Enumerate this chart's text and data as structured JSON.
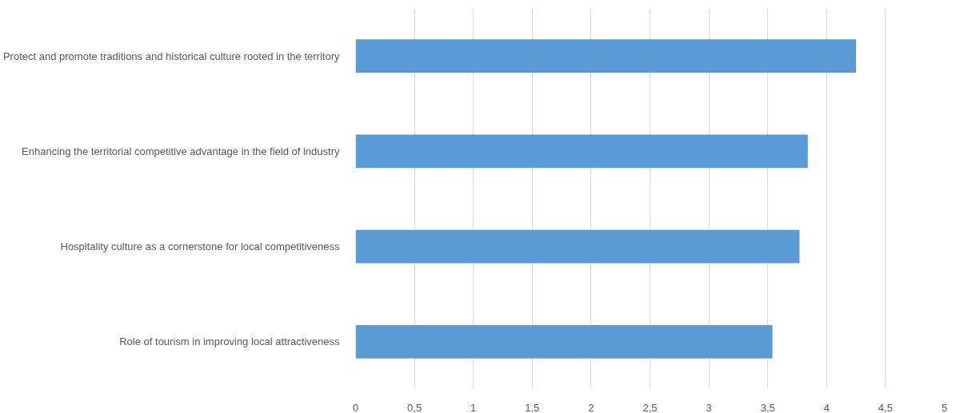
{
  "chart_data": {
    "type": "bar",
    "orientation": "horizontal",
    "categories": [
      "Protect and promote traditions and historical culture rooted in the territory",
      "Enhancing the territorial competitive advantage in the field of industry",
      "Hospitality culture as a cornerstone for local competitiveness",
      "Role of tourism in improving local attractiveness"
    ],
    "values": [
      4.25,
      3.84,
      3.77,
      3.54
    ],
    "color": "#5b9bd5",
    "xlim": [
      0,
      5
    ],
    "xticks": [
      0,
      {
        "value": 0.5,
        "label": "0,5"
      },
      1,
      {
        "value": 1.5,
        "label": "1,5"
      },
      2,
      {
        "value": 2.5,
        "label": "2,5"
      },
      3,
      {
        "value": 3.5,
        "label": "3,5"
      },
      4,
      {
        "value": 4.5,
        "label": "4,5"
      },
      5
    ],
    "grid": "x"
  }
}
